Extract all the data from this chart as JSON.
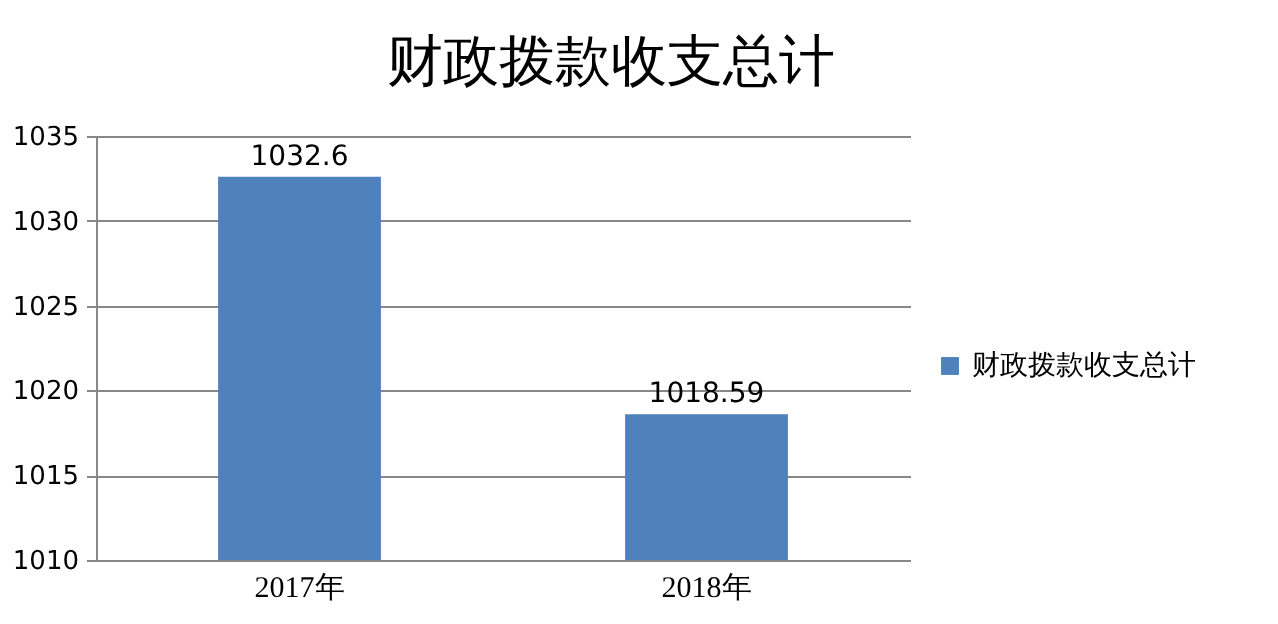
{
  "chart_data": {
    "type": "bar",
    "title": "财政拨款收支总计",
    "categories": [
      "2017年",
      "2018年"
    ],
    "series": [
      {
        "name": "财政拨款收支总计",
        "color": "#4f81bd",
        "values": [
          1032.6,
          1018.59
        ]
      }
    ],
    "ylim": [
      1010,
      1035
    ],
    "yticks": [
      1010,
      1015,
      1020,
      1025,
      1030,
      1035
    ],
    "grid": "y",
    "legend": "right",
    "data_labels": true
  }
}
